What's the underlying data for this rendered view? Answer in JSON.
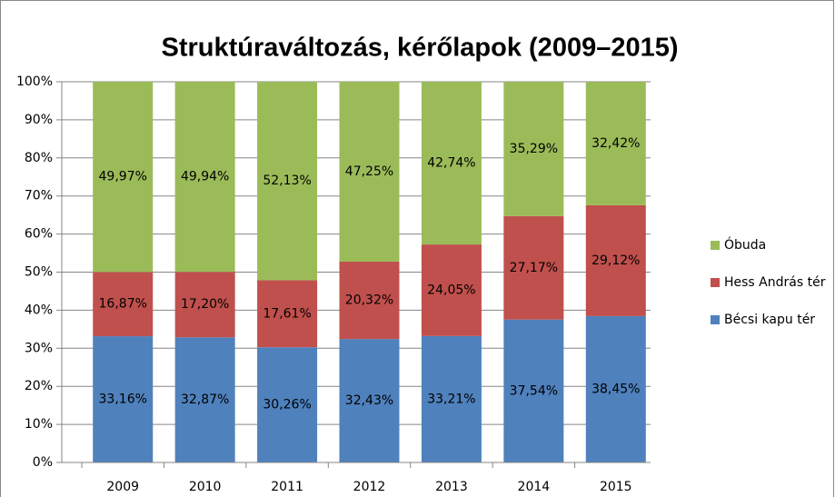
{
  "chart_data": {
    "type": "stacked_bar",
    "title": "Struktúraváltozás, kérőlapok (2009–2015)",
    "categories": [
      "2009",
      "2010",
      "2011",
      "2012",
      "2013",
      "2014",
      "2015"
    ],
    "series": [
      {
        "name": "Bécsi kapu tér",
        "color": "#4f81bd",
        "values": [
          33.16,
          32.87,
          30.26,
          32.43,
          33.21,
          37.54,
          38.45
        ],
        "value_labels": [
          "33,16%",
          "32,87%",
          "30,26%",
          "32,43%",
          "33,21%",
          "37,54%",
          "38,45%"
        ]
      },
      {
        "name": "Hess András tér",
        "color": "#c0504d",
        "values": [
          16.87,
          17.2,
          17.61,
          20.32,
          24.05,
          27.17,
          29.12
        ],
        "value_labels": [
          "16,87%",
          "17,20%",
          "17,61%",
          "20,32%",
          "24,05%",
          "27,17%",
          "29,12%"
        ]
      },
      {
        "name": "Óbuda",
        "color": "#9bbb59",
        "values": [
          49.97,
          49.94,
          52.13,
          47.25,
          42.74,
          35.29,
          32.42
        ],
        "value_labels": [
          "49,97%",
          "49,94%",
          "52,13%",
          "47,25%",
          "42,74%",
          "35,29%",
          "32,42%"
        ]
      }
    ],
    "ylim": [
      0,
      100
    ],
    "yticks": [
      {
        "value": 0,
        "label": "0%"
      },
      {
        "value": 10,
        "label": "10%"
      },
      {
        "value": 20,
        "label": "20%"
      },
      {
        "value": 30,
        "label": "30%"
      },
      {
        "value": 40,
        "label": "40%"
      },
      {
        "value": 50,
        "label": "50%"
      },
      {
        "value": 60,
        "label": "60%"
      },
      {
        "value": 70,
        "label": "70%"
      },
      {
        "value": 80,
        "label": "80%"
      },
      {
        "value": 90,
        "label": "90%"
      },
      {
        "value": 100,
        "label": "100%"
      }
    ],
    "grid": true,
    "legend": "right"
  }
}
